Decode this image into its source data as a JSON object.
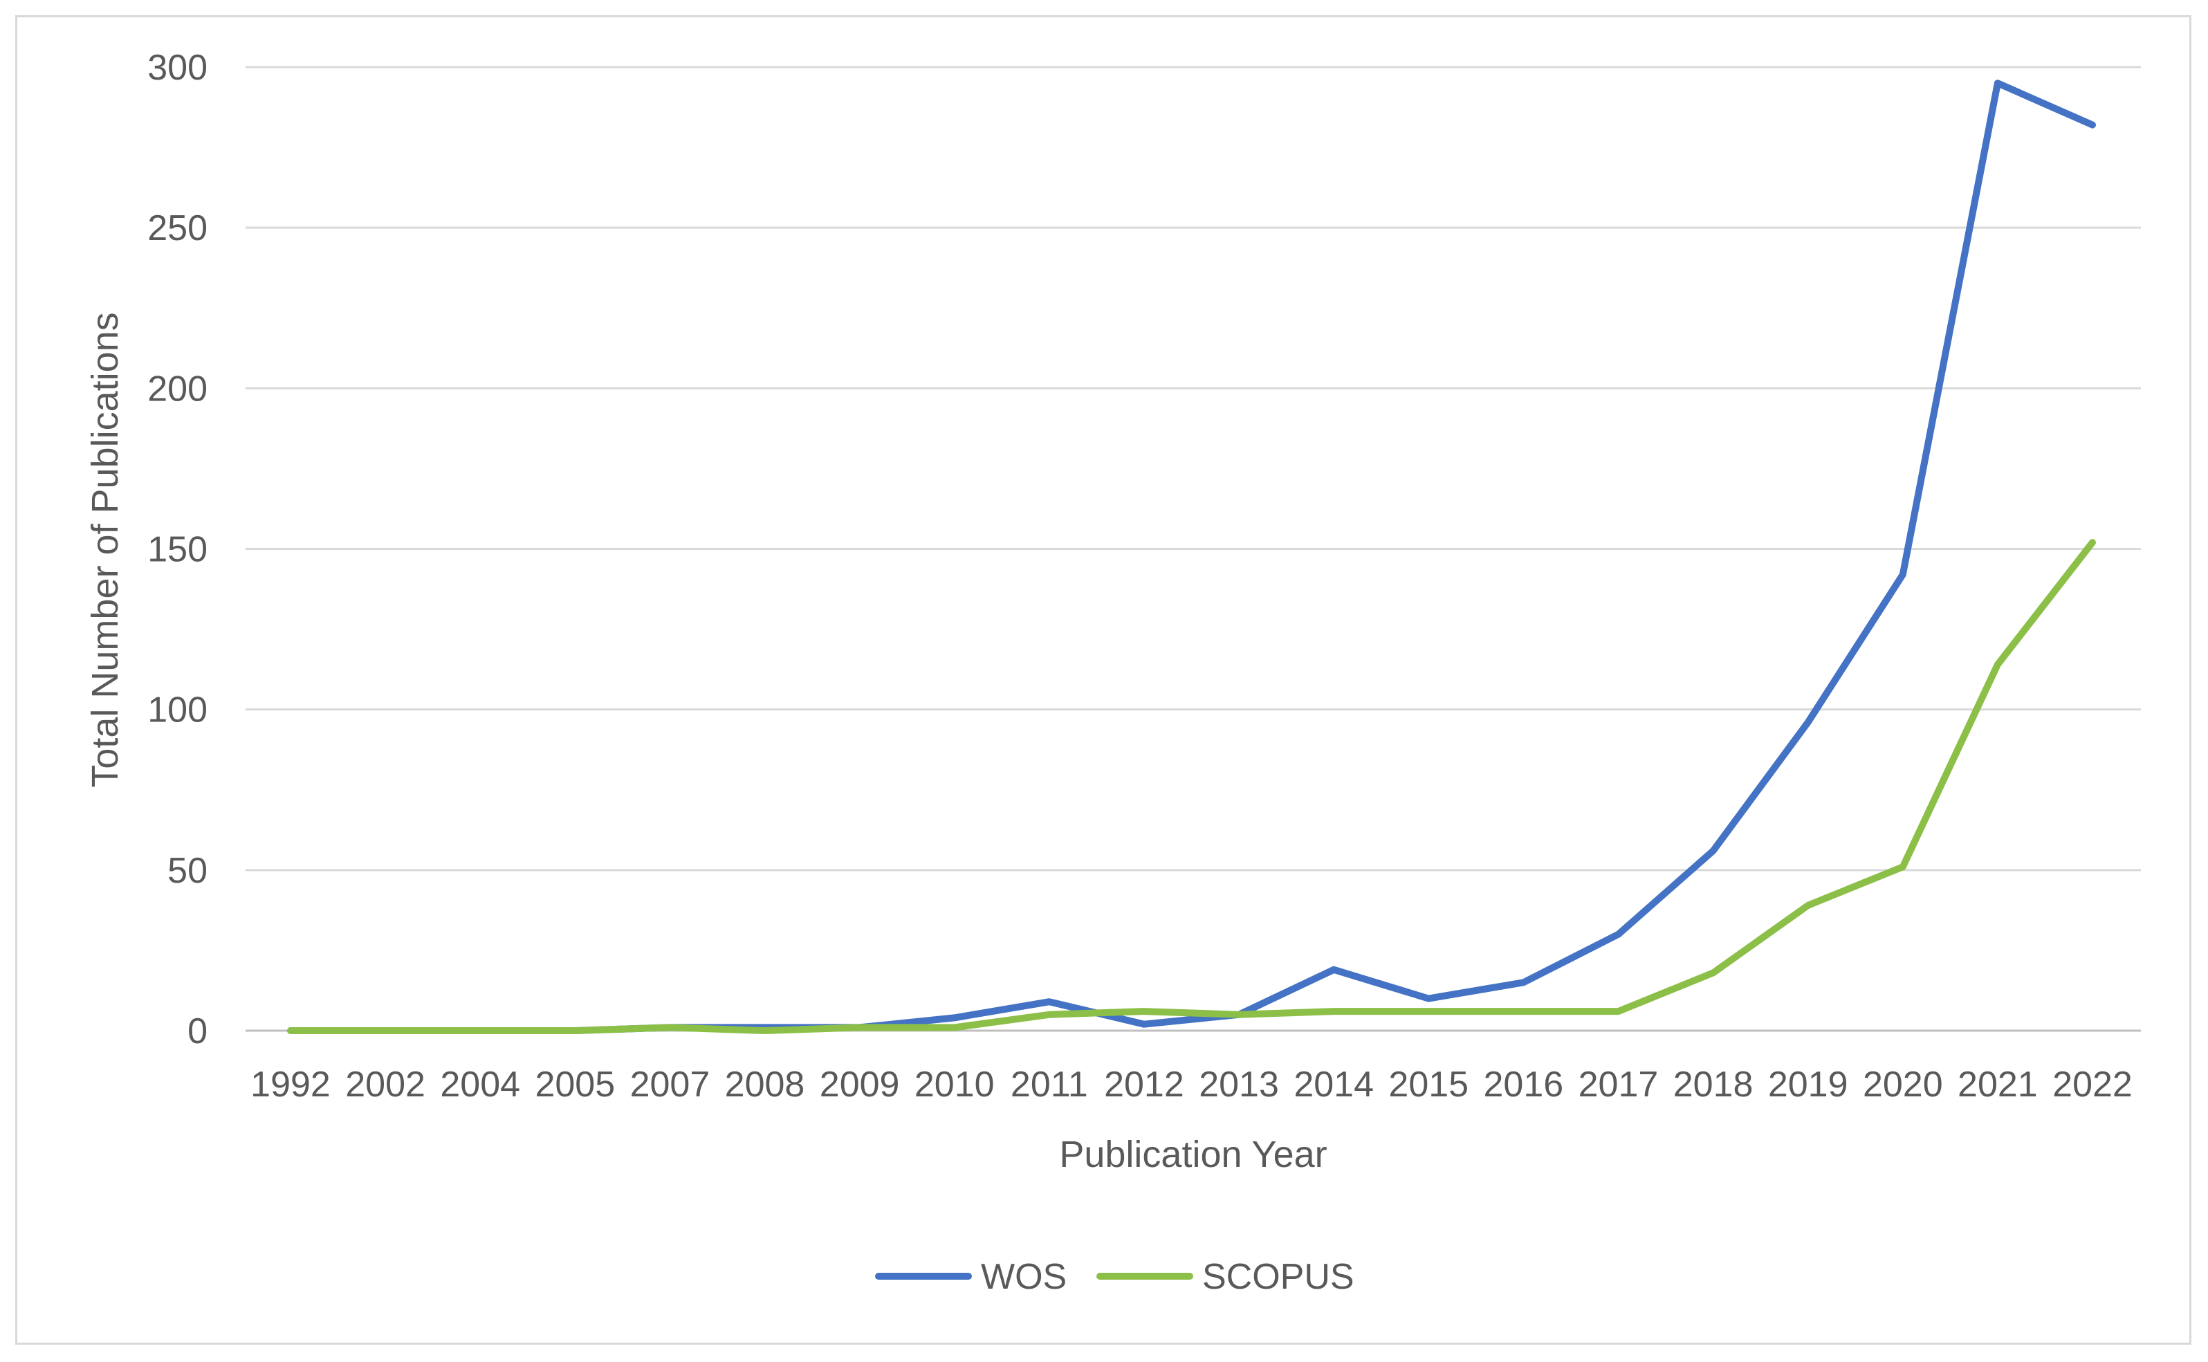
{
  "chart_data": {
    "type": "line",
    "title": "",
    "xlabel": "Publication Year",
    "ylabel": "Total Number  of Publications",
    "categories": [
      "1992",
      "2002",
      "2004",
      "2005",
      "2007",
      "2008",
      "2009",
      "2010",
      "2011",
      "2012",
      "2013",
      "2014",
      "2015",
      "2016",
      "2017",
      "2018",
      "2019",
      "2020",
      "2021",
      "2022"
    ],
    "ylim": [
      0,
      300
    ],
    "yticks": [
      0,
      50,
      100,
      150,
      200,
      250,
      300
    ],
    "grid": true,
    "legend": "bottom",
    "series": [
      {
        "name": "WOS",
        "color": "#4472c4",
        "values": [
          0,
          0,
          0,
          0,
          1,
          1,
          1,
          4,
          9,
          2,
          5,
          19,
          10,
          15,
          30,
          56,
          96,
          142,
          295,
          282
        ]
      },
      {
        "name": "SCOPUS",
        "color": "#8cbf47",
        "values": [
          0,
          0,
          0,
          0,
          1,
          0,
          1,
          1,
          5,
          6,
          5,
          6,
          6,
          6,
          6,
          18,
          39,
          51,
          114,
          152
        ]
      }
    ]
  }
}
